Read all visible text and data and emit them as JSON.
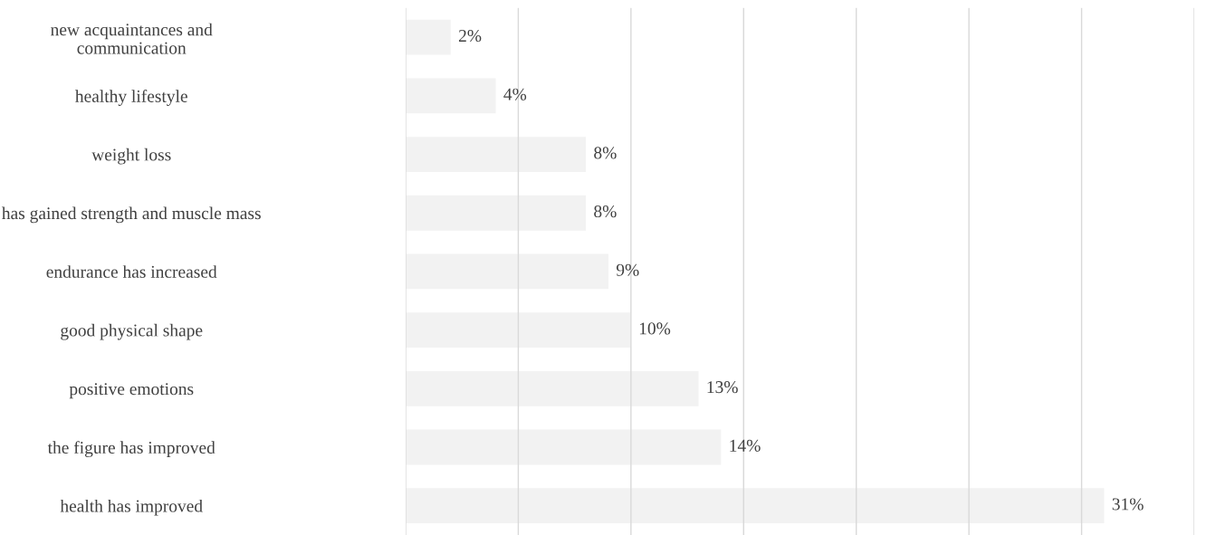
{
  "chart_data": {
    "type": "bar",
    "orientation": "horizontal",
    "categories": [
      "new acquaintances and\ncommunication",
      "healthy lifestyle",
      "weight loss",
      "has gained strength and muscle mass",
      "endurance has increased",
      "good physical shape",
      "positive emotions",
      "the figure has improved",
      "health has improved"
    ],
    "values": [
      2,
      4,
      8,
      8,
      9,
      10,
      13,
      14,
      31
    ],
    "value_labels": [
      "2%",
      "4%",
      "8%",
      "8%",
      "9%",
      "10%",
      "13%",
      "14%",
      "31%"
    ],
    "color": "#f2f2f2",
    "xlim": [
      0,
      35
    ],
    "xticks": [
      {
        "value": 0,
        "label": null
      },
      {
        "value": 5,
        "label": null
      },
      {
        "value": 10,
        "label": null
      },
      {
        "value": 15,
        "label": null
      },
      {
        "value": 20,
        "label": null
      },
      {
        "value": 25,
        "label": null
      },
      {
        "value": 30,
        "label": null
      },
      {
        "value": 35,
        "label": null
      }
    ],
    "grid": "x",
    "tick_labels": "y"
  }
}
